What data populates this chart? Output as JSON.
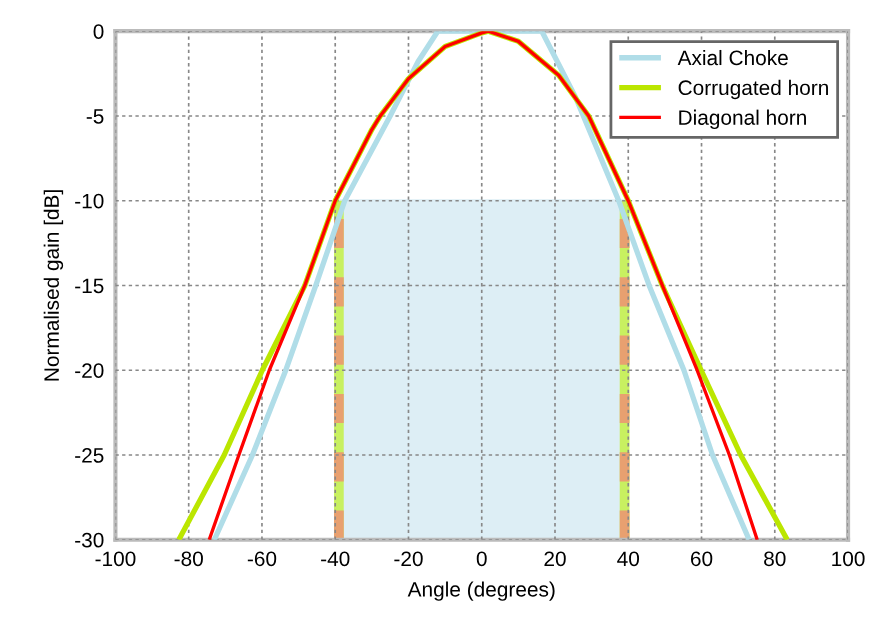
{
  "chart_data": {
    "type": "line",
    "xlabel": "Angle (degrees)",
    "ylabel": "Normalised gain [dB]",
    "xlim": [
      -100,
      100
    ],
    "ylim": [
      -30,
      0
    ],
    "xticks": [
      -100,
      -80,
      -60,
      -40,
      -20,
      0,
      20,
      40,
      60,
      80,
      100
    ],
    "yticks": [
      -30,
      -25,
      -20,
      -15,
      -10,
      -5,
      0
    ],
    "grid": true,
    "legend": "top right",
    "line_style": "solid",
    "marker": "none",
    "series": [
      {
        "color": "#ddeef5",
        "x": [
          -39,
          39
        ],
        "values": [
          -10,
          -10
        ],
        "lower": [
          -30,
          -30
        ],
        "upper": [
          -10,
          -10
        ]
      },
      {
        "color": "#c8f060",
        "x": [
          -39,
          -39
        ],
        "values": [
          -30,
          -10
        ]
      },
      {
        "color": "#e8a070",
        "line_style": "dashed",
        "x": [
          -39,
          -39
        ],
        "values": [
          -30,
          -10
        ]
      },
      {
        "color": "#c8f060",
        "x": [
          39,
          39
        ],
        "values": [
          -30,
          -10
        ]
      },
      {
        "color": "#e8a070",
        "line_style": "dashed",
        "x": [
          39,
          39
        ],
        "values": [
          -30,
          -10
        ]
      },
      {
        "name": "Axial Choke",
        "color": "#b0dde8",
        "x": [
          -73,
          -62.6,
          -53.5,
          -45.3,
          -37.4,
          -25,
          -17.4,
          -12,
          0,
          10,
          16.4,
          25.6,
          37.4,
          45.7,
          55.2,
          63,
          73
        ],
        "values": [
          -30,
          -25,
          -20,
          -15,
          -10,
          -5,
          -1.8,
          0,
          0,
          0,
          0,
          -3.9,
          -10,
          -15,
          -20,
          -25,
          -30
        ]
      },
      {
        "name": "Corrugated horn",
        "color": "#bbe600",
        "x": [
          -82.7,
          -70.3,
          -59.9,
          -48.3,
          -40,
          -30,
          -27.7,
          -20,
          -10,
          0,
          1.8,
          10,
          21,
          29.2,
          40,
          49.3,
          59.9,
          70.7,
          83.4
        ],
        "values": [
          -30,
          -25,
          -20,
          -15,
          -10,
          -5.8,
          -5,
          -2.8,
          -0.9,
          -0.1,
          0,
          -0.6,
          -2.6,
          -5,
          -10,
          -15,
          -20,
          -25,
          -30
        ]
      },
      {
        "name": "Diagonal horn",
        "color": "#ff0000",
        "x": [
          -74.4,
          -66.3,
          -58,
          -48.3,
          -40,
          -30,
          -27.7,
          -20,
          -10,
          0,
          1.8,
          10,
          21,
          29.2,
          40,
          49.3,
          58.8,
          67.6,
          75.2
        ],
        "values": [
          -30,
          -25,
          -20,
          -15,
          -10,
          -5.8,
          -5,
          -2.8,
          -0.9,
          -0.1,
          0,
          -0.6,
          -2.6,
          -5,
          -10,
          -15,
          -20,
          -25,
          -30
        ]
      }
    ]
  }
}
